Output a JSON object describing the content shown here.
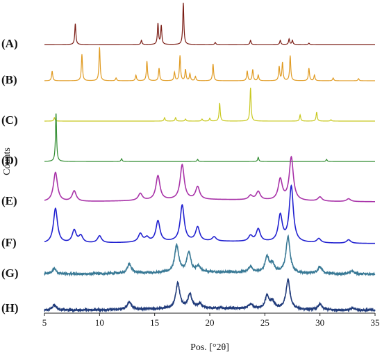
{
  "chart_data": {
    "type": "line",
    "xlabel": "Pos. [°2θ]",
    "ylabel": "Counts",
    "xlim": [
      5,
      35
    ],
    "x_ticks": [
      "5",
      "10",
      "15",
      "20",
      "25",
      "30",
      "35"
    ],
    "grid": false,
    "legend": "none",
    "series": [
      {
        "name": "(A)",
        "color": "#7a1c14",
        "peaks": [
          [
            7.8,
            30
          ],
          [
            13.8,
            6
          ],
          [
            15.3,
            30
          ],
          [
            15.6,
            27
          ],
          [
            17.6,
            60
          ],
          [
            20.5,
            3
          ],
          [
            23.7,
            6
          ],
          [
            26.4,
            6
          ],
          [
            27.2,
            8
          ],
          [
            27.5,
            6
          ],
          [
            29.0,
            2
          ]
        ]
      },
      {
        "name": "(B)",
        "color": "#e09a20",
        "peaks": [
          [
            5.7,
            14
          ],
          [
            8.4,
            38
          ],
          [
            10.0,
            48
          ],
          [
            11.5,
            4
          ],
          [
            13.3,
            8
          ],
          [
            14.3,
            28
          ],
          [
            15.4,
            18
          ],
          [
            16.8,
            12
          ],
          [
            17.3,
            36
          ],
          [
            17.8,
            16
          ],
          [
            18.2,
            10
          ],
          [
            18.7,
            6
          ],
          [
            20.3,
            24
          ],
          [
            23.4,
            14
          ],
          [
            23.9,
            16
          ],
          [
            24.4,
            8
          ],
          [
            26.3,
            20
          ],
          [
            26.6,
            26
          ],
          [
            27.3,
            36
          ],
          [
            29.0,
            18
          ],
          [
            29.5,
            8
          ],
          [
            31.2,
            4
          ],
          [
            33.5,
            3
          ]
        ]
      },
      {
        "name": "(C)",
        "color": "#c8c81e",
        "peaks": [
          [
            5.9,
            5
          ],
          [
            15.9,
            5
          ],
          [
            16.9,
            5
          ],
          [
            17.8,
            3
          ],
          [
            19.3,
            3
          ],
          [
            20.0,
            4
          ],
          [
            20.9,
            26
          ],
          [
            23.7,
            48
          ],
          [
            28.2,
            9
          ],
          [
            29.7,
            13
          ],
          [
            31.0,
            2
          ]
        ]
      },
      {
        "name": "(D)",
        "color": "#2e8b2e",
        "peaks": [
          [
            6.05,
            70
          ],
          [
            12.0,
            4
          ],
          [
            18.9,
            3
          ],
          [
            24.4,
            6
          ],
          [
            30.6,
            3
          ]
        ]
      },
      {
        "name": "(E)",
        "color": "#a832a8",
        "peaks": [
          [
            6.0,
            42
          ],
          [
            7.7,
            15
          ],
          [
            13.7,
            10
          ],
          [
            15.3,
            35
          ],
          [
            17.5,
            50
          ],
          [
            18.9,
            18
          ],
          [
            23.7,
            6
          ],
          [
            24.4,
            12
          ],
          [
            26.4,
            30
          ],
          [
            27.4,
            62
          ],
          [
            30.0,
            6
          ],
          [
            32.6,
            4
          ]
        ]
      },
      {
        "name": "(F)",
        "color": "#2020d0",
        "peaks": [
          [
            6.0,
            50
          ],
          [
            7.7,
            18
          ],
          [
            8.3,
            10
          ],
          [
            10.0,
            10
          ],
          [
            13.7,
            12
          ],
          [
            14.3,
            6
          ],
          [
            15.3,
            30
          ],
          [
            17.5,
            52
          ],
          [
            18.9,
            20
          ],
          [
            20.4,
            6
          ],
          [
            23.7,
            8
          ],
          [
            24.4,
            18
          ],
          [
            26.4,
            38
          ],
          [
            27.4,
            80
          ],
          [
            29.9,
            6
          ],
          [
            32.6,
            5
          ]
        ]
      },
      {
        "name": "(G)",
        "color": "#3a7a96",
        "peaks": [
          [
            5.9,
            8
          ],
          [
            12.7,
            14
          ],
          [
            17.0,
            38
          ],
          [
            18.1,
            28
          ],
          [
            19.0,
            8
          ],
          [
            23.7,
            8
          ],
          [
            25.2,
            22
          ],
          [
            25.7,
            12
          ],
          [
            27.1,
            52
          ],
          [
            30.0,
            10
          ],
          [
            32.9,
            4
          ]
        ]
      },
      {
        "name": "(H)",
        "color": "#1f3a7a",
        "peaks": [
          [
            5.9,
            8
          ],
          [
            12.7,
            11
          ],
          [
            17.1,
            36
          ],
          [
            18.2,
            20
          ],
          [
            19.1,
            6
          ],
          [
            23.7,
            6
          ],
          [
            25.2,
            18
          ],
          [
            25.7,
            10
          ],
          [
            27.1,
            42
          ],
          [
            30.0,
            8
          ],
          [
            33.0,
            3
          ]
        ]
      }
    ]
  }
}
